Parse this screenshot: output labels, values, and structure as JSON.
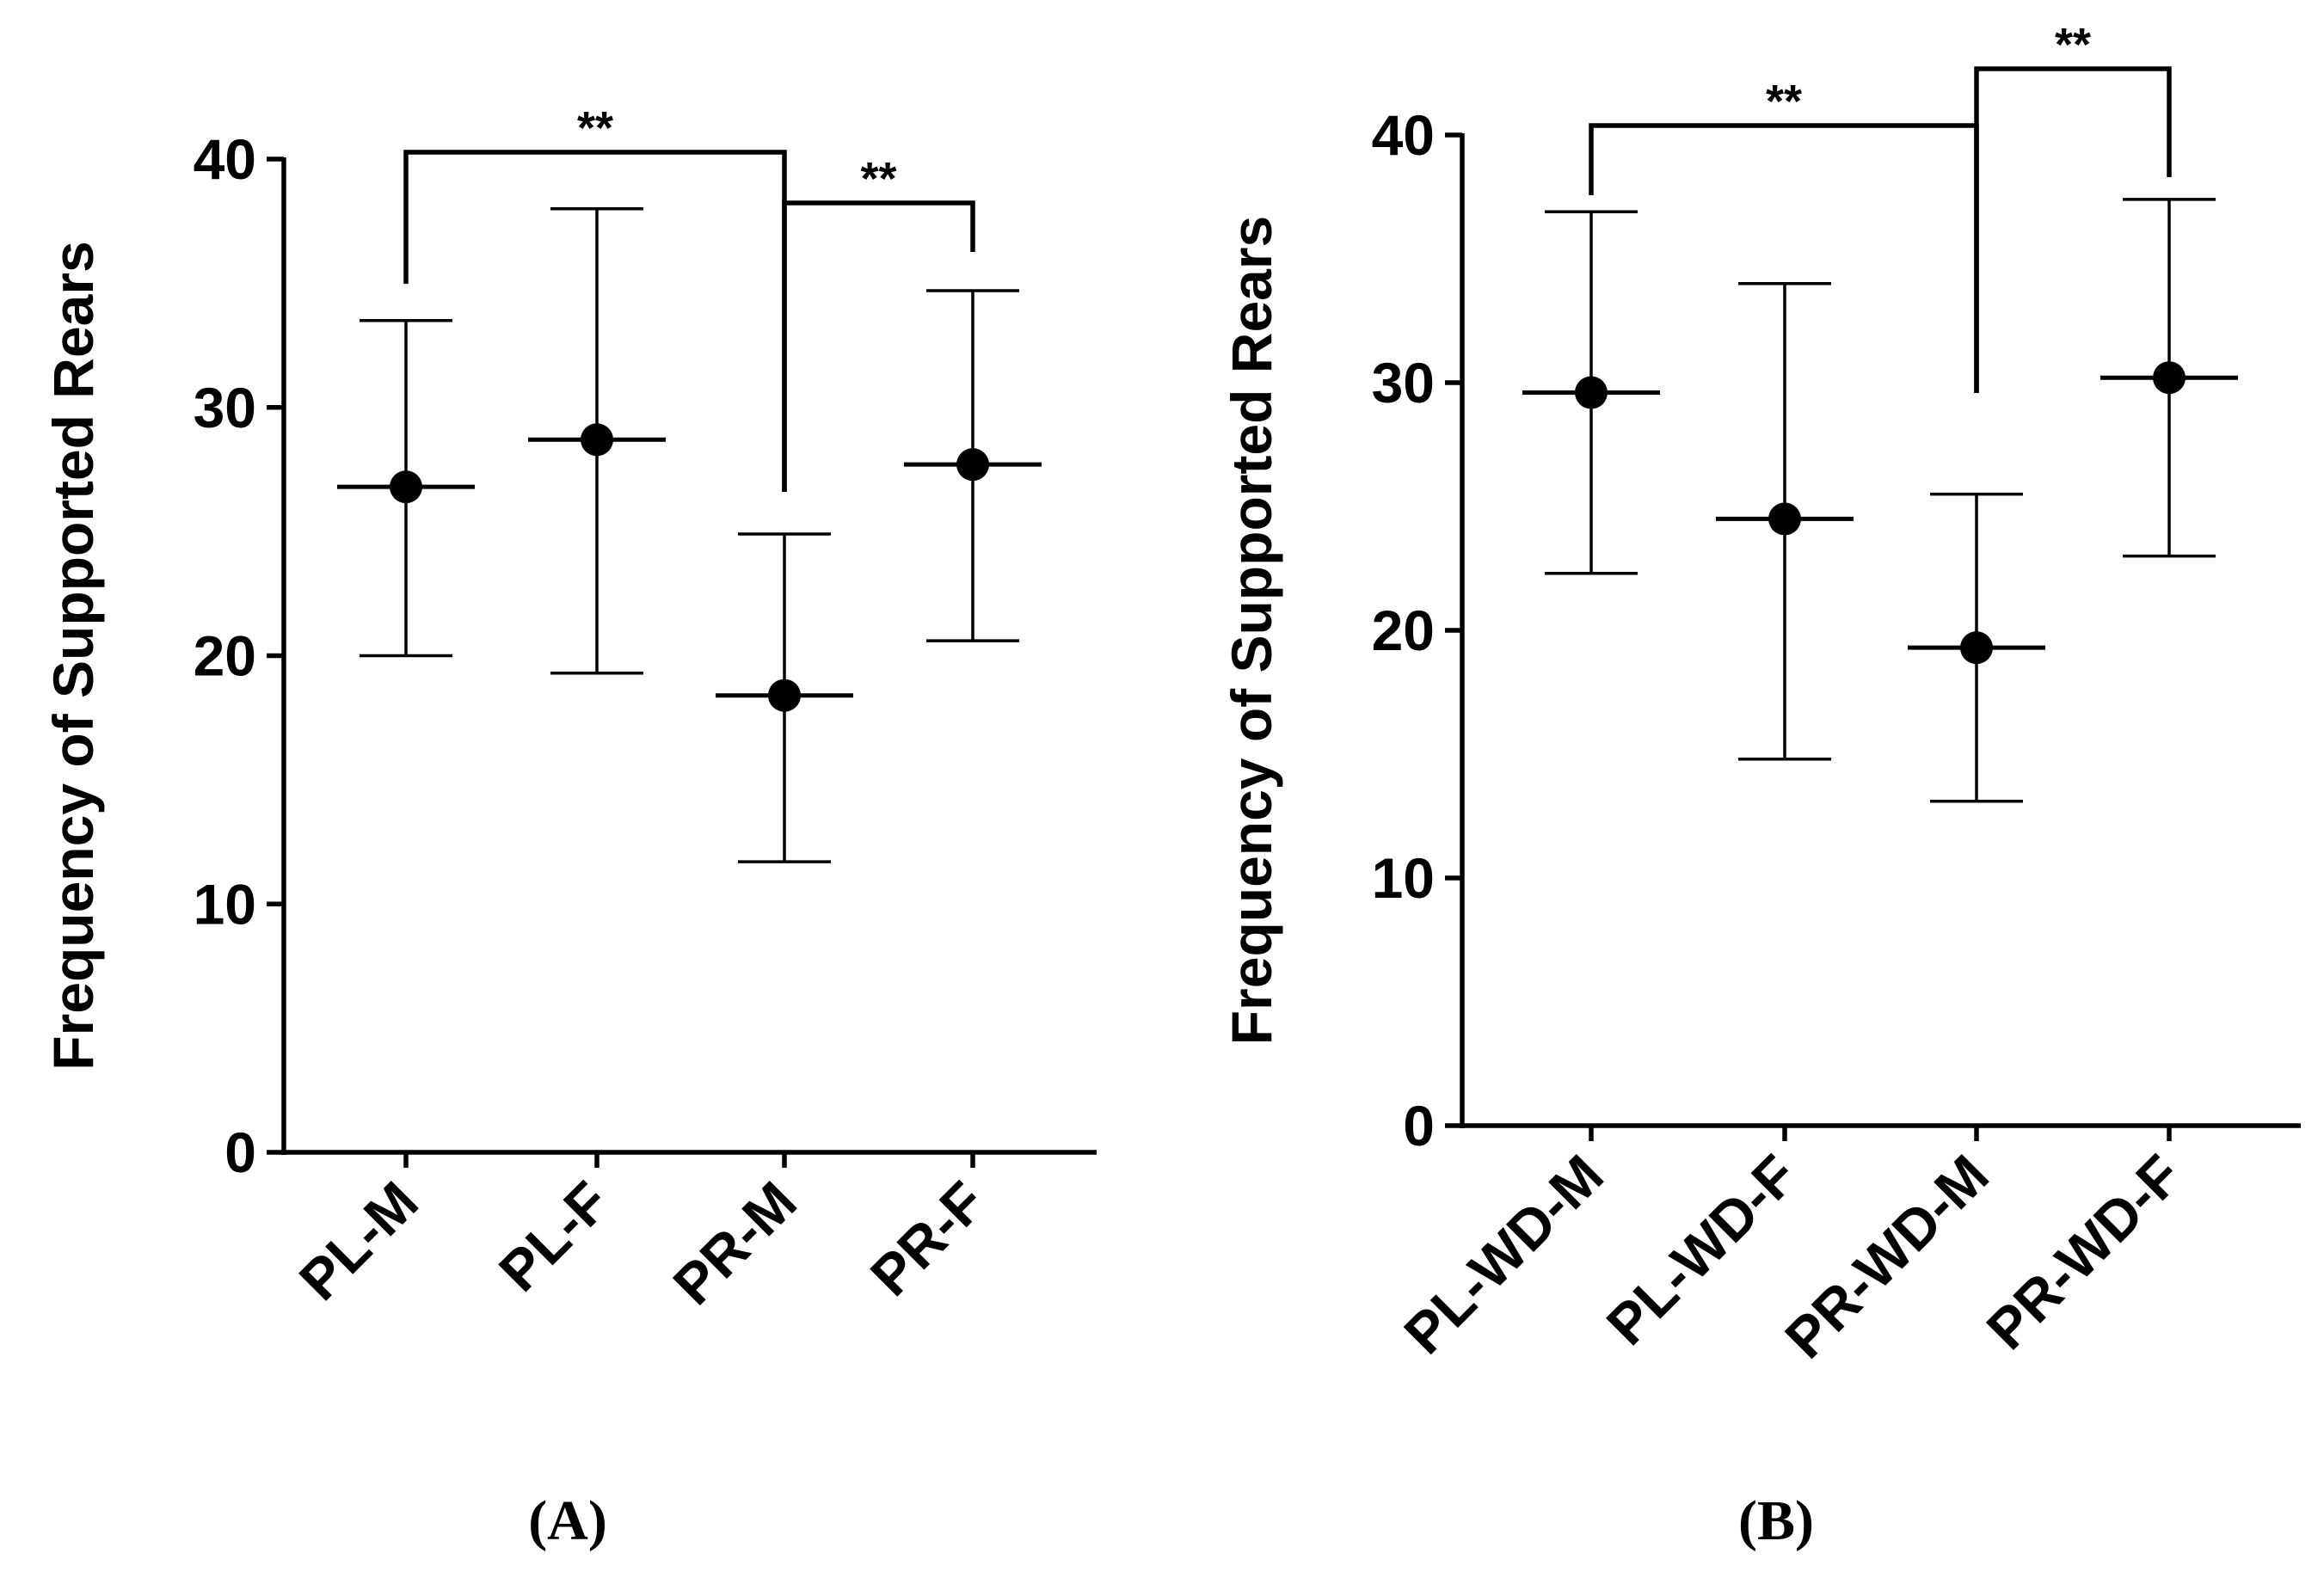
{
  "chart_data": [
    {
      "type": "scatter",
      "style": "mean-with-error-bars",
      "panel_label": "(A)",
      "ylabel": "Frequency of Supported Rears",
      "ylim": [
        0,
        40
      ],
      "yticks": [
        0,
        10,
        20,
        30,
        40
      ],
      "categories": [
        "PL-M",
        "PL-F",
        "PR-M",
        "PR-F"
      ],
      "means": [
        26.8,
        28.7,
        18.4,
        27.7
      ],
      "upper": [
        33.5,
        38.0,
        24.9,
        34.7
      ],
      "lower": [
        20.0,
        19.3,
        11.7,
        20.6
      ],
      "significance": [
        {
          "from": "PL-M",
          "to": "PR-M",
          "label": "**"
        },
        {
          "from": "PR-M",
          "to": "PR-F",
          "label": "**"
        }
      ]
    },
    {
      "type": "scatter",
      "style": "mean-with-error-bars",
      "panel_label": "(B)",
      "ylabel": "Frequency of Supported Rears",
      "ylim": [
        0,
        40
      ],
      "yticks": [
        0,
        10,
        20,
        30,
        40
      ],
      "categories": [
        "PL-WD-M",
        "PL-WD-F",
        "PR-WD-M",
        "PR-WD-F"
      ],
      "means": [
        29.6,
        24.5,
        19.3,
        30.2
      ],
      "upper": [
        36.9,
        34.0,
        25.5,
        37.4
      ],
      "lower": [
        22.3,
        14.8,
        13.1,
        23.0
      ],
      "significance": [
        {
          "from": "PL-WD-M",
          "to": "PR-WD-M",
          "label": "**"
        },
        {
          "from": "PR-WD-M",
          "to": "PR-WD-F",
          "label": "**"
        }
      ]
    }
  ]
}
